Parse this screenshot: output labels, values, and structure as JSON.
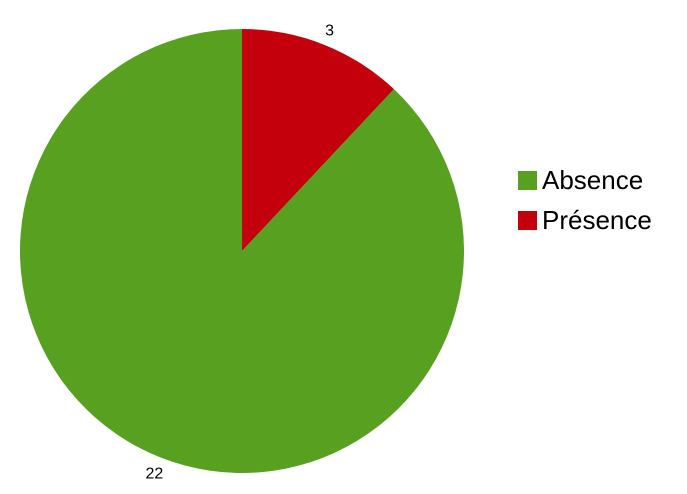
{
  "chart_data": {
    "type": "pie",
    "start_angle_deg": 0,
    "direction": "clockwise",
    "slices": [
      {
        "label": "Présence",
        "value": 3,
        "color": "#c4000d"
      },
      {
        "label": "Absence",
        "value": 22,
        "color": "#57a020"
      }
    ],
    "legend": {
      "position": "right",
      "items": [
        {
          "label": "Absence",
          "color": "#57a020"
        },
        {
          "label": "Présence",
          "color": "#c4000d"
        }
      ]
    }
  }
}
